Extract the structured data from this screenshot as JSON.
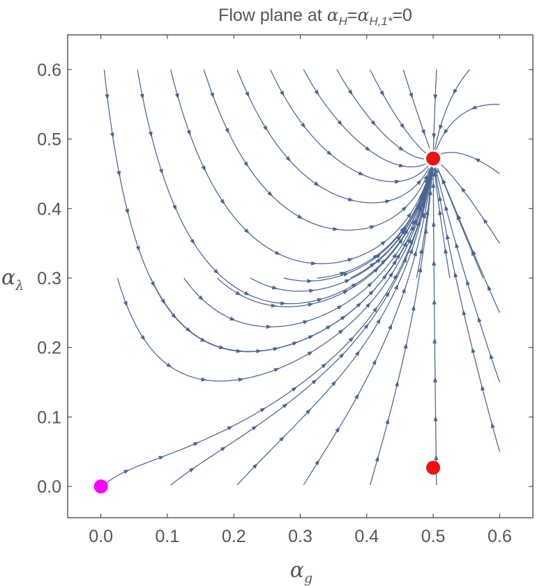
{
  "chart_data": {
    "type": "scatter",
    "subtype": "stream plot",
    "title": {
      "prefix": "Flow plane at ",
      "sym1": "α",
      "sub1": "H",
      "eq1": "=",
      "sym2": "α",
      "sub2": "H,1*",
      "eq2": "=0"
    },
    "xlabel": {
      "sym": "α",
      "sub": "g"
    },
    "ylabel": {
      "sym": "α",
      "sub": "λ"
    },
    "xlim": [
      -0.05,
      0.65
    ],
    "ylim": [
      -0.045,
      0.65
    ],
    "xticks": [
      "0.0",
      "0.1",
      "0.2",
      "0.3",
      "0.4",
      "0.5",
      "0.6"
    ],
    "yticks": [
      "0.0",
      "0.1",
      "0.2",
      "0.3",
      "0.4",
      "0.5",
      "0.6"
    ],
    "grid": false,
    "stream_color": "#4a6591",
    "fixed_points": [
      {
        "x": 0.0,
        "y": 0.0,
        "color": "#ff00ff"
      },
      {
        "x": 0.5,
        "y": 0.472,
        "color": "#ee1111"
      },
      {
        "x": 0.5,
        "y": 0.027,
        "color": "#ee1111"
      }
    ]
  }
}
